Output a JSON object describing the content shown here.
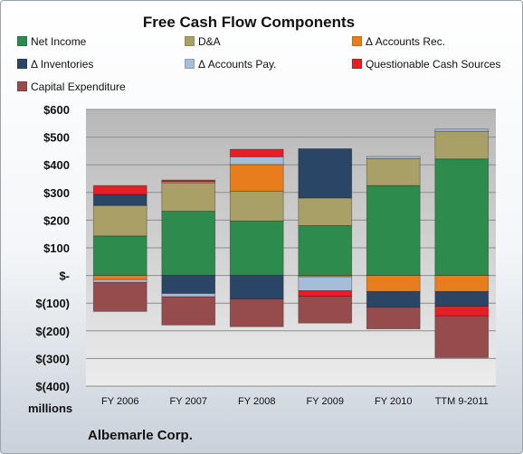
{
  "chart_data": {
    "type": "bar",
    "stacked": true,
    "title": "Free Cash Flow Components",
    "categories": [
      "FY 2006",
      "FY 2007",
      "FY 2008",
      "FY 2009",
      "FY 2010",
      "TTM 9-2011"
    ],
    "ylim": [
      -400,
      600
    ],
    "yticks": [
      600,
      500,
      400,
      300,
      200,
      100,
      0,
      -100,
      -200,
      -300,
      -400
    ],
    "ytick_labels": [
      "$600",
      "$500",
      "$400",
      "$300",
      "$200",
      "$100",
      "$-",
      "$(100)",
      "$(200)",
      "$(300)",
      "$(400)"
    ],
    "ylabel": "millions",
    "series": [
      {
        "name": "Net Income",
        "color": "#2e8b4e",
        "values": [
          143,
          232,
          197,
          180,
          325,
          421
        ]
      },
      {
        "name": "D&A",
        "color": "#a8a067",
        "values": [
          110,
          103,
          108,
          100,
          97,
          100
        ]
      },
      {
        "name": "Δ Accounts Rec.",
        "color": "#e87d1e",
        "values": [
          -15,
          5,
          96,
          -5,
          -58,
          -58
        ]
      },
      {
        "name": "Δ Inventories",
        "color": "#2b4567",
        "values": [
          40,
          -65,
          -85,
          178,
          -57,
          -53
        ]
      },
      {
        "name": "Δ Accounts Pay.",
        "color": "#a6bcd8",
        "values": [
          -10,
          -12,
          28,
          -50,
          8,
          8
        ]
      },
      {
        "name": "Questionable Cash Sources",
        "color": "#e51f26",
        "values": [
          32,
          5,
          27,
          -20,
          0,
          -35
        ]
      },
      {
        "name": "Capital Expenditure",
        "color": "#964c4c",
        "values": [
          -105,
          -102,
          -100,
          -97,
          -78,
          -151
        ]
      }
    ]
  },
  "footer": {
    "units": "millions",
    "company": "Albemarle Corp."
  }
}
